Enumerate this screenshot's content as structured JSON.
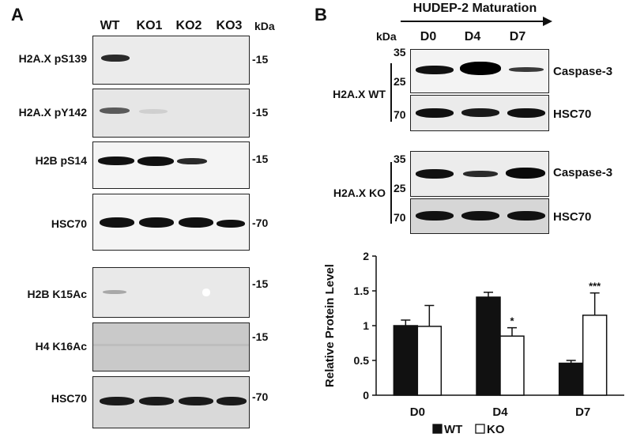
{
  "panel_a": {
    "letter": "A",
    "lanes": [
      "WT",
      "KO1",
      "KO2",
      "KO3"
    ],
    "kda_label": "kDa",
    "blots": [
      {
        "label": "H2A.X pS139",
        "marker": "-15"
      },
      {
        "label": "H2A.X pY142",
        "marker": "-15"
      },
      {
        "label": "H2B pS14",
        "marker": "-15"
      },
      {
        "label": "HSC70",
        "marker": "-70"
      },
      {
        "label": "H2B K15Ac",
        "marker": "-15"
      },
      {
        "label": "H4 K16Ac",
        "marker": "-15"
      },
      {
        "label": "HSC70",
        "marker": "-70"
      }
    ]
  },
  "panel_b": {
    "letter": "B",
    "maturation_title": "HUDEP-2 Maturation",
    "kda_label": "kDa",
    "lanes": [
      "D0",
      "D4",
      "D7"
    ],
    "groups": [
      {
        "label": "H2A.X WT",
        "markers": [
          "35",
          "25",
          "70"
        ],
        "proteins": [
          "Caspase-3",
          "HSC70"
        ]
      },
      {
        "label": "H2A.X KO",
        "markers": [
          "35",
          "25",
          "70"
        ],
        "proteins": [
          "Caspase-3",
          "HSC70"
        ]
      }
    ]
  },
  "chart_data": {
    "type": "bar",
    "categories": [
      "D0",
      "D4",
      "D7"
    ],
    "ylabel": "Relative Protein Level",
    "ylim": [
      0,
      2
    ],
    "yticks": [
      "0",
      "0.5",
      "1",
      "1.5",
      "2"
    ],
    "series": [
      {
        "name": "WT",
        "color": "#111111",
        "values": [
          1.0,
          1.41,
          0.46
        ],
        "errors": [
          0.08,
          0.07,
          0.04
        ]
      },
      {
        "name": "KO",
        "color": "#ffffff",
        "values": [
          0.99,
          0.85,
          1.15
        ],
        "errors": [
          0.3,
          0.12,
          0.32
        ]
      }
    ],
    "significance": [
      "",
      "*",
      "***"
    ],
    "legend_position": "bottom"
  }
}
